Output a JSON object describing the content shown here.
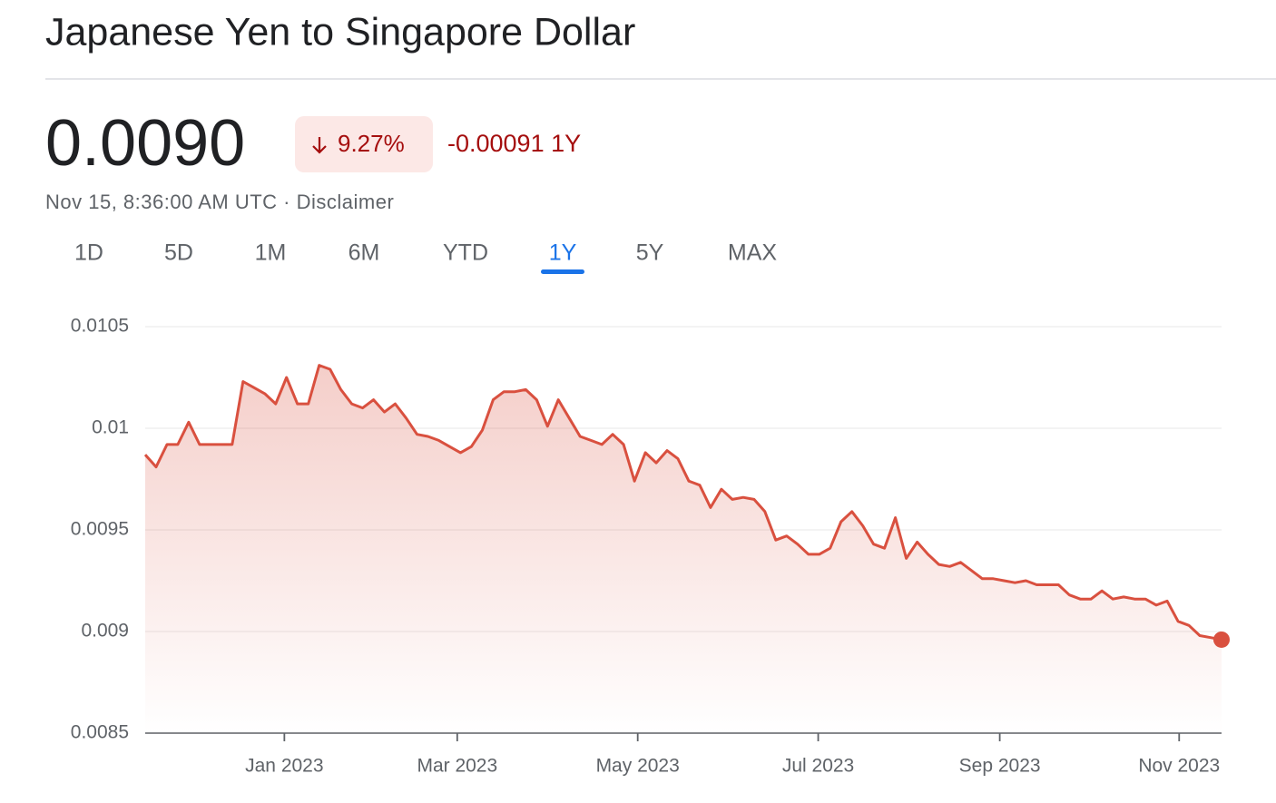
{
  "header": {
    "title": "Japanese Yen to Singapore Dollar",
    "price": "0.0090",
    "change_percent": "9.27%",
    "change": "-0.00091",
    "period": "1Y",
    "timestamp": "Nov 15, 8:36:00 AM UTC ·",
    "disclaimer": "Disclaimer"
  },
  "tabs": {
    "items": [
      "1D",
      "5D",
      "1M",
      "6M",
      "YTD",
      "1Y",
      "5Y",
      "MAX"
    ],
    "active": "1Y"
  },
  "chart_data": {
    "type": "line",
    "color": "#d9503f",
    "grid": true,
    "values": [
      0.00987,
      0.00981,
      0.00992,
      0.00992,
      0.01003,
      0.00992,
      0.00992,
      0.00992,
      0.00992,
      0.01023,
      0.0102,
      0.01017,
      0.01012,
      0.01025,
      0.01012,
      0.01012,
      0.01031,
      0.01029,
      0.01019,
      0.01012,
      0.0101,
      0.01014,
      0.01008,
      0.01012,
      0.01005,
      0.00997,
      0.00996,
      0.00994,
      0.00991,
      0.00988,
      0.00991,
      0.00999,
      0.01014,
      0.01018,
      0.01018,
      0.01019,
      0.01014,
      0.01001,
      0.01014,
      0.01005,
      0.00996,
      0.00994,
      0.00992,
      0.00997,
      0.00992,
      0.00974,
      0.00988,
      0.00983,
      0.00989,
      0.00985,
      0.00974,
      0.00972,
      0.00961,
      0.0097,
      0.00965,
      0.00966,
      0.00965,
      0.00959,
      0.00945,
      0.00947,
      0.00943,
      0.00938,
      0.00938,
      0.00941,
      0.00954,
      0.00959,
      0.00952,
      0.00943,
      0.00941,
      0.00956,
      0.00936,
      0.00944,
      0.00938,
      0.00933,
      0.00932,
      0.00934,
      0.0093,
      0.00926,
      0.00926,
      0.00925,
      0.00924,
      0.00925,
      0.00923,
      0.00923,
      0.00923,
      0.00918,
      0.00916,
      0.00916,
      0.0092,
      0.00916,
      0.00917,
      0.00916,
      0.00916,
      0.00913,
      0.00915,
      0.00905,
      0.00903,
      0.00898,
      0.00897,
      0.00896
    ],
    "xlim": [
      0,
      99
    ],
    "xticks": [
      {
        "value": 12.8,
        "label": "Jan 2023"
      },
      {
        "value": 28.7,
        "label": "Mar 2023"
      },
      {
        "value": 45.3,
        "label": "May 2023"
      },
      {
        "value": 61.9,
        "label": "Jul 2023"
      },
      {
        "value": 78.6,
        "label": "Sep 2023"
      },
      {
        "value": 95.1,
        "label": "Nov 2023"
      }
    ],
    "ylim": [
      0.0085,
      0.0105
    ],
    "yticks": [
      0.0105,
      0.01,
      0.0095,
      0.009,
      0.0085
    ]
  }
}
